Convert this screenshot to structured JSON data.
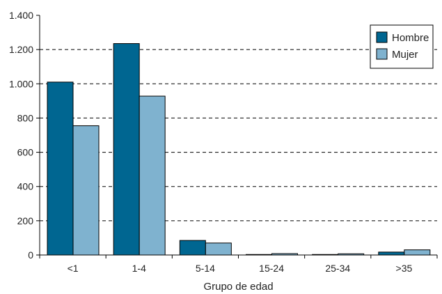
{
  "chart_data": {
    "type": "bar",
    "categories": [
      "<1",
      "1-4",
      "5-14",
      "15-24",
      "25-34",
      ">35"
    ],
    "series": [
      {
        "name": "Hombre",
        "values": [
          1010,
          1235,
          85,
          3,
          3,
          17
        ],
        "color": "#006691"
      },
      {
        "name": "Mujer",
        "values": [
          755,
          928,
          70,
          8,
          7,
          30
        ],
        "color": "#7fb2cf"
      }
    ],
    "title": "",
    "xlabel": "Grupo de edad",
    "ylabel": "",
    "ylim": [
      0,
      1400
    ],
    "yticks": [
      0,
      200,
      400,
      600,
      800,
      1000,
      1200,
      1400
    ],
    "ytick_labels": [
      "0",
      "200",
      "400",
      "600",
      "800",
      "1.000",
      "1.200",
      "1.400"
    ],
    "grid": "dashed horizontal",
    "legend_position": "top-right"
  }
}
